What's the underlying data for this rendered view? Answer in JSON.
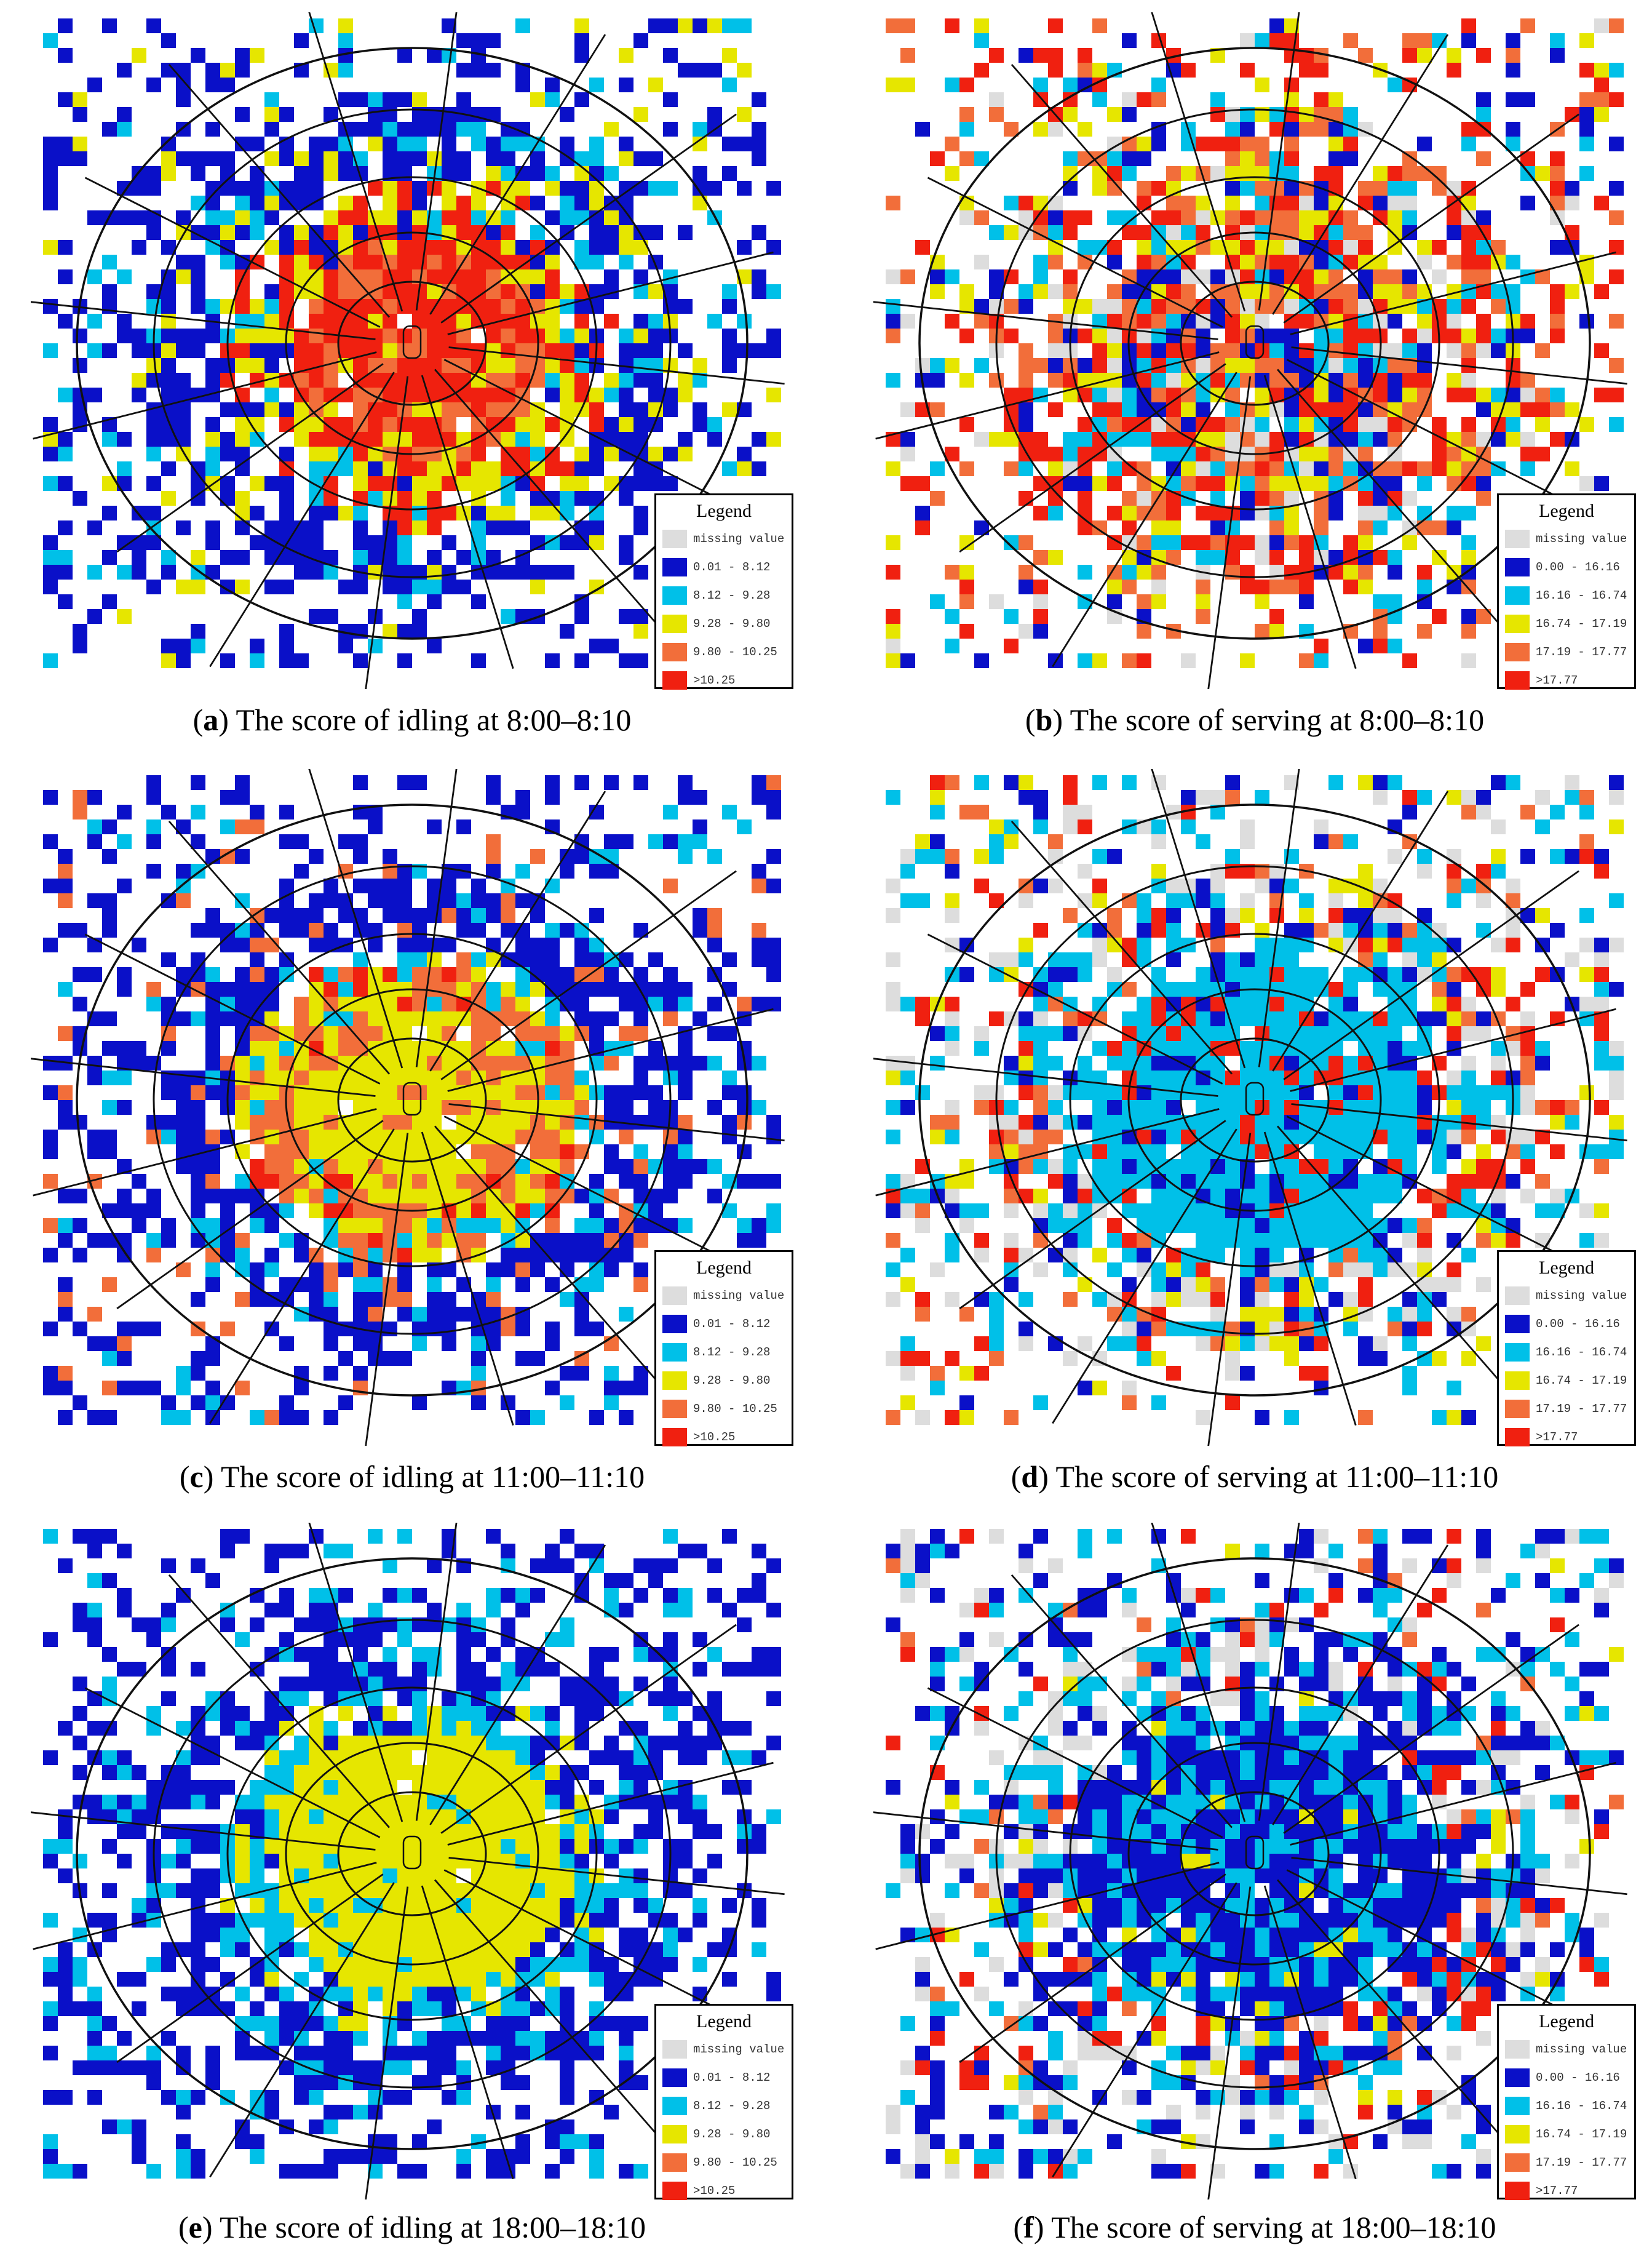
{
  "figure": {
    "panels": [
      {
        "id": "a",
        "caption": "The score of idling at 8:00–8:10",
        "legend": {
          "title": "Legend",
          "items": [
            {
              "label": "missing value",
              "color": "#dddddd"
            },
            {
              "label": "0.01 - 8.12",
              "color": "#0a10c8"
            },
            {
              "label": "8.12 - 9.28",
              "color": "#00c0e8"
            },
            {
              "label": "9.28 - 9.80",
              "color": "#e6e600"
            },
            {
              "label": "9.80 - 10.25",
              "color": "#f26e3a"
            },
            {
              "label": ">10.25",
              "color": "#f02010"
            }
          ]
        }
      },
      {
        "id": "b",
        "caption": "The score of serving at 8:00–8:10",
        "legend": {
          "title": "Legend",
          "items": [
            {
              "label": "missing value",
              "color": "#dddddd"
            },
            {
              "label": "0.00 - 16.16",
              "color": "#0a10c8"
            },
            {
              "label": "16.16 - 16.74",
              "color": "#00c0e8"
            },
            {
              "label": "16.74 - 17.19",
              "color": "#e6e600"
            },
            {
              "label": "17.19 - 17.77",
              "color": "#f26e3a"
            },
            {
              "label": ">17.77",
              "color": "#f02010"
            }
          ]
        }
      },
      {
        "id": "c",
        "caption": "The score of idling at 11:00–11:10",
        "legend": {
          "title": "Legend",
          "items": [
            {
              "label": "missing value",
              "color": "#dddddd"
            },
            {
              "label": "0.01 - 8.12",
              "color": "#0a10c8"
            },
            {
              "label": "8.12 - 9.28",
              "color": "#00c0e8"
            },
            {
              "label": "9.28 - 9.80",
              "color": "#e6e600"
            },
            {
              "label": "9.80 - 10.25",
              "color": "#f26e3a"
            },
            {
              "label": ">10.25",
              "color": "#f02010"
            }
          ]
        }
      },
      {
        "id": "d",
        "caption": "The score of serving at 11:00–11:10",
        "legend": {
          "title": "Legend",
          "items": [
            {
              "label": "missing value",
              "color": "#dddddd"
            },
            {
              "label": "0.00 - 16.16",
              "color": "#0a10c8"
            },
            {
              "label": "16.16 - 16.74",
              "color": "#00c0e8"
            },
            {
              "label": "16.74 - 17.19",
              "color": "#e6e600"
            },
            {
              "label": "17.19 - 17.77",
              "color": "#f26e3a"
            },
            {
              "label": ">17.77",
              "color": "#f02010"
            }
          ]
        }
      },
      {
        "id": "e",
        "caption": "The score of idling at 18:00–18:10",
        "legend": {
          "title": "Legend",
          "items": [
            {
              "label": "missing value",
              "color": "#dddddd"
            },
            {
              "label": "0.01 - 8.12",
              "color": "#0a10c8"
            },
            {
              "label": "8.12 - 9.28",
              "color": "#00c0e8"
            },
            {
              "label": "9.28 - 9.80",
              "color": "#e6e600"
            },
            {
              "label": "9.80 - 10.25",
              "color": "#f26e3a"
            },
            {
              "label": ">10.25",
              "color": "#f02010"
            }
          ]
        }
      },
      {
        "id": "f",
        "caption": "The score of serving at 18:00–18:10",
        "legend": {
          "title": "Legend",
          "items": [
            {
              "label": "missing value",
              "color": "#dddddd"
            },
            {
              "label": "0.00 - 16.16",
              "color": "#0a10c8"
            },
            {
              "label": "16.16 - 16.74",
              "color": "#00c0e8"
            },
            {
              "label": "16.74 - 17.19",
              "color": "#e6e600"
            },
            {
              "label": "17.19 - 17.77",
              "color": "#f26e3a"
            },
            {
              "label": ">17.77",
              "color": "#f02010"
            }
          ]
        }
      }
    ]
  }
}
